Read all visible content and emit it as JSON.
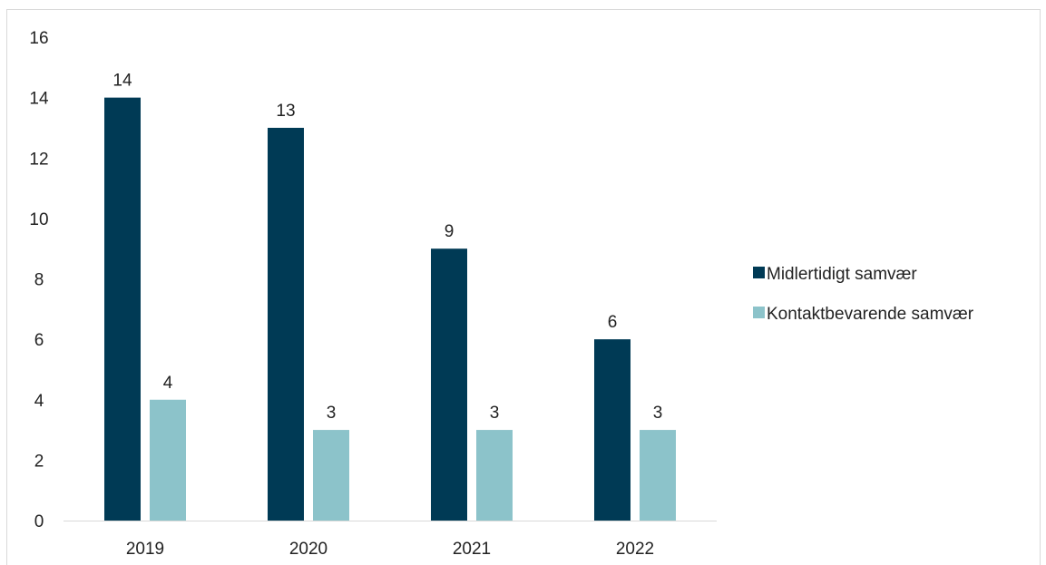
{
  "chart_data": {
    "type": "bar",
    "title": "",
    "xlabel": "",
    "ylabel": "",
    "categories": [
      "2019",
      "2020",
      "2021",
      "2022"
    ],
    "series": [
      {
        "name": "Midlertidigt samvær",
        "values": [
          14,
          13,
          9,
          6
        ],
        "color": "#003a55"
      },
      {
        "name": "Kontaktbevarende samvær",
        "values": [
          4,
          3,
          3,
          3
        ],
        "color": "#8cc3ca"
      }
    ],
    "ylim": [
      0,
      16
    ],
    "yticks": [
      0,
      2,
      4,
      6,
      8,
      10,
      12,
      14,
      16
    ],
    "grid": false,
    "legend_position": "right",
    "data_labels": true
  }
}
